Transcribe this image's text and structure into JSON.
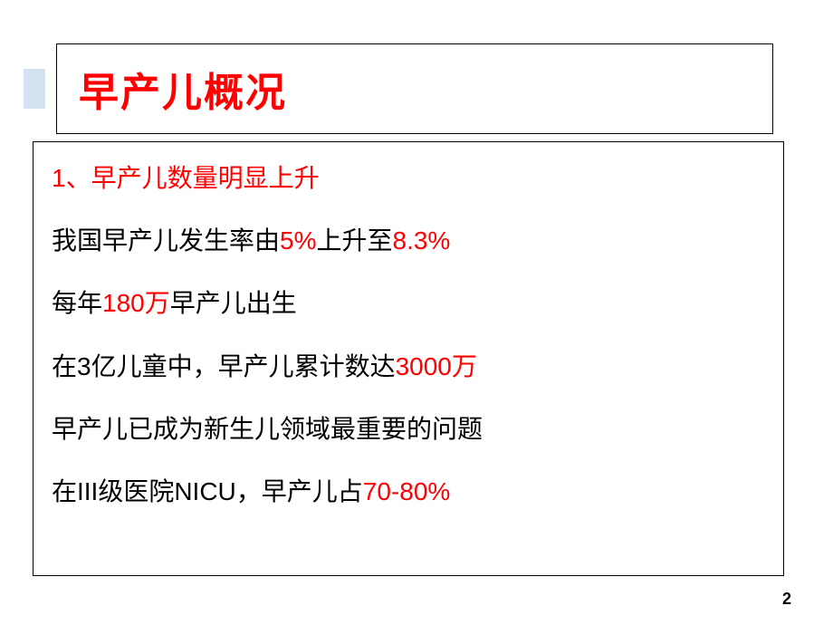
{
  "slide": {
    "title": "早产儿概况",
    "title_color": "#ff0000",
    "title_fontsize": 44,
    "accent_color": "#d5e3f0",
    "border_color": "#000000",
    "content_fontsize": 28,
    "lines": {
      "l1_full": "1、早产儿数量明显上升",
      "l2_a": "我国早产儿发生率由",
      "l2_b": "5%",
      "l2_c": "上升至",
      "l2_d": "8.3%",
      "l3_a": "每年",
      "l3_b": "180万",
      "l3_c": "早产儿出生",
      "l4_a": "在3亿儿童中，早产儿累计数达",
      "l4_b": "3000万",
      "l5": "早产儿已成为新生儿领域最重要的问题",
      "l6_a": "在III级医院NICU，早产儿占",
      "l6_b": "70-80%"
    },
    "page_number": "2"
  }
}
